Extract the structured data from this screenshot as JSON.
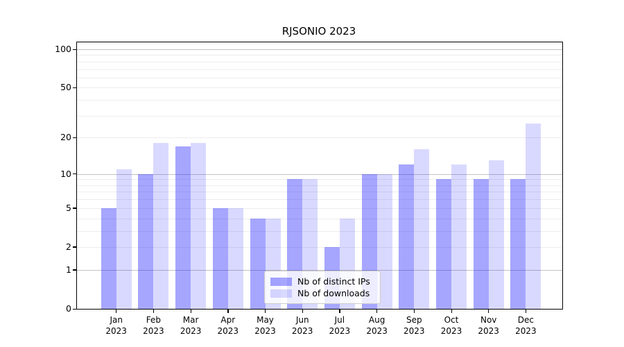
{
  "chart_data": {
    "type": "bar",
    "title": "RJSONIO 2023",
    "year": "2023",
    "months": [
      "Jan",
      "Feb",
      "Mar",
      "Apr",
      "May",
      "Jun",
      "Jul",
      "Aug",
      "Sep",
      "Oct",
      "Nov",
      "Dec"
    ],
    "series": [
      {
        "id": "distinct-ips",
        "name": "Nb of distinct IPs",
        "color": "rgba(0,0,255,0.35)",
        "values": [
          5,
          10,
          17,
          5,
          4,
          9,
          2,
          10,
          12,
          9,
          9,
          9
        ]
      },
      {
        "id": "downloads",
        "name": "Nb of downloads",
        "color": "rgba(0,0,255,0.15)",
        "values": [
          11,
          18,
          18,
          5,
          4,
          9,
          4,
          10,
          16,
          12,
          13,
          26
        ]
      }
    ],
    "xlabel": "",
    "ylabel": "",
    "yscale": "log1p",
    "ylim": [
      0,
      113
    ],
    "ytick_values": [
      100,
      50,
      20,
      10,
      5,
      2,
      1,
      0
    ],
    "grid": {
      "axis": "y",
      "major_lines": [
        1,
        10,
        100
      ],
      "minor_lines": [
        2,
        3,
        4,
        5,
        6,
        7,
        8,
        9,
        20,
        30,
        40,
        50,
        60,
        70,
        80,
        90
      ]
    },
    "legend_position": "lower-center-inside"
  },
  "colors": {
    "bar_distinct_ips_rendered": "#a6a6ff",
    "bar_downloads_rendered": "#d9d9ff",
    "grid_major": "#c3c3c3",
    "grid_minor": "#ededed",
    "spine": "#000000",
    "background": "#ffffff",
    "legend_border": "#cccccc"
  }
}
